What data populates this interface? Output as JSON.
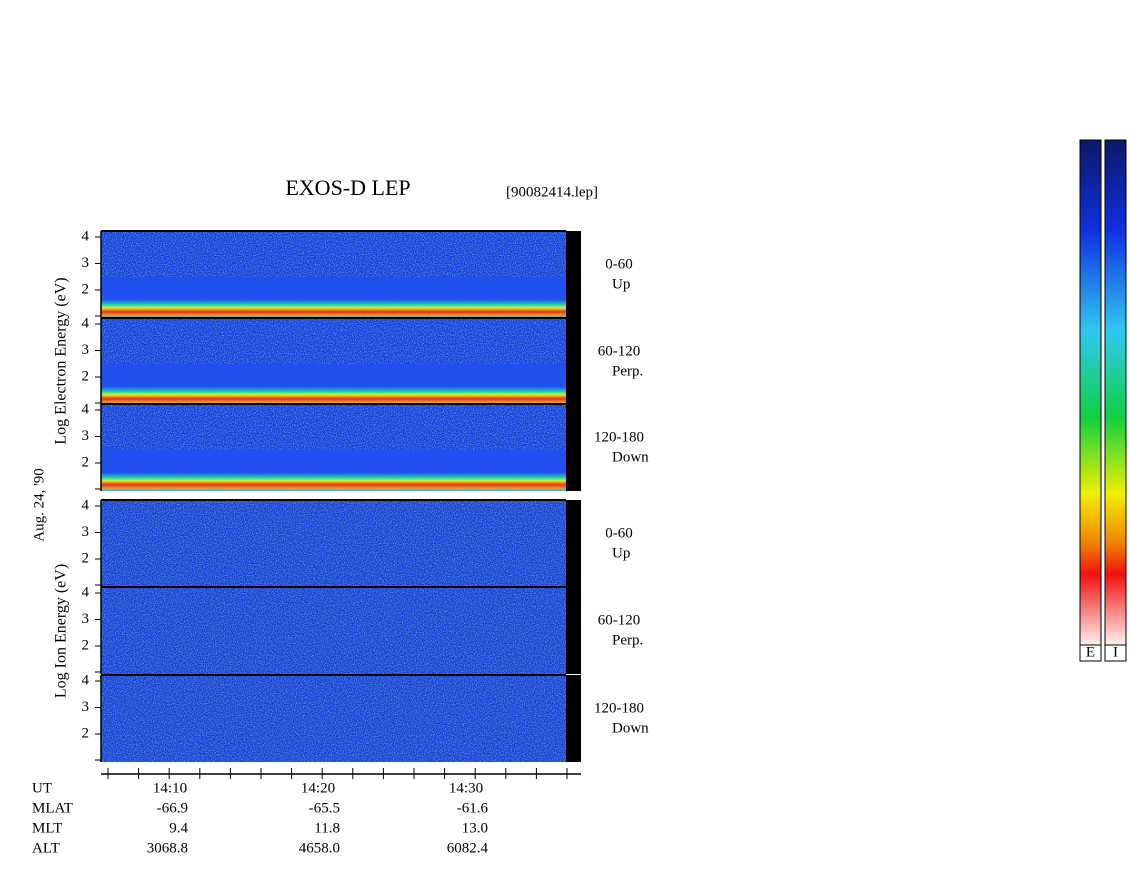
{
  "title": "EXOS-D LEP",
  "file": "[90082414.lep]",
  "date": "Aug. 24, '90",
  "electron": {
    "axis_label": "Log Electron Energy (eV)",
    "panels": [
      {
        "yticks": [
          "4",
          "3",
          "2"
        ],
        "label": "0-60",
        "sublabel": "Up"
      },
      {
        "yticks": [
          "4",
          "3",
          "2"
        ],
        "label": "60-120",
        "sublabel": "Perp."
      },
      {
        "yticks": [
          "4",
          "3",
          "2"
        ],
        "label": "120-180",
        "sublabel": "Down"
      }
    ]
  },
  "ion": {
    "axis_label": "Log Ion Energy (eV)",
    "panels": [
      {
        "yticks": [
          "4",
          "3",
          "2"
        ],
        "label": "0-60",
        "sublabel": "Up"
      },
      {
        "yticks": [
          "4",
          "3",
          "2"
        ],
        "label": "60-120",
        "sublabel": "Perp."
      },
      {
        "yticks": [
          "4",
          "3",
          "2"
        ],
        "label": "120-180",
        "sublabel": "Down"
      }
    ]
  },
  "time_axis": {
    "label": "UT",
    "ticks": [
      "14:10",
      "14:20",
      "14:30"
    ]
  },
  "ephemeris": [
    {
      "name": "MLAT",
      "values": [
        "-66.9",
        "-65.5",
        "-61.6"
      ]
    },
    {
      "name": "MLT",
      "values": [
        "9.4",
        "11.8",
        "13.0"
      ]
    },
    {
      "name": "ALT",
      "values": [
        "3068.8",
        "4658.0",
        "6082.4"
      ]
    }
  ],
  "colorbars": [
    "E",
    "I"
  ]
}
